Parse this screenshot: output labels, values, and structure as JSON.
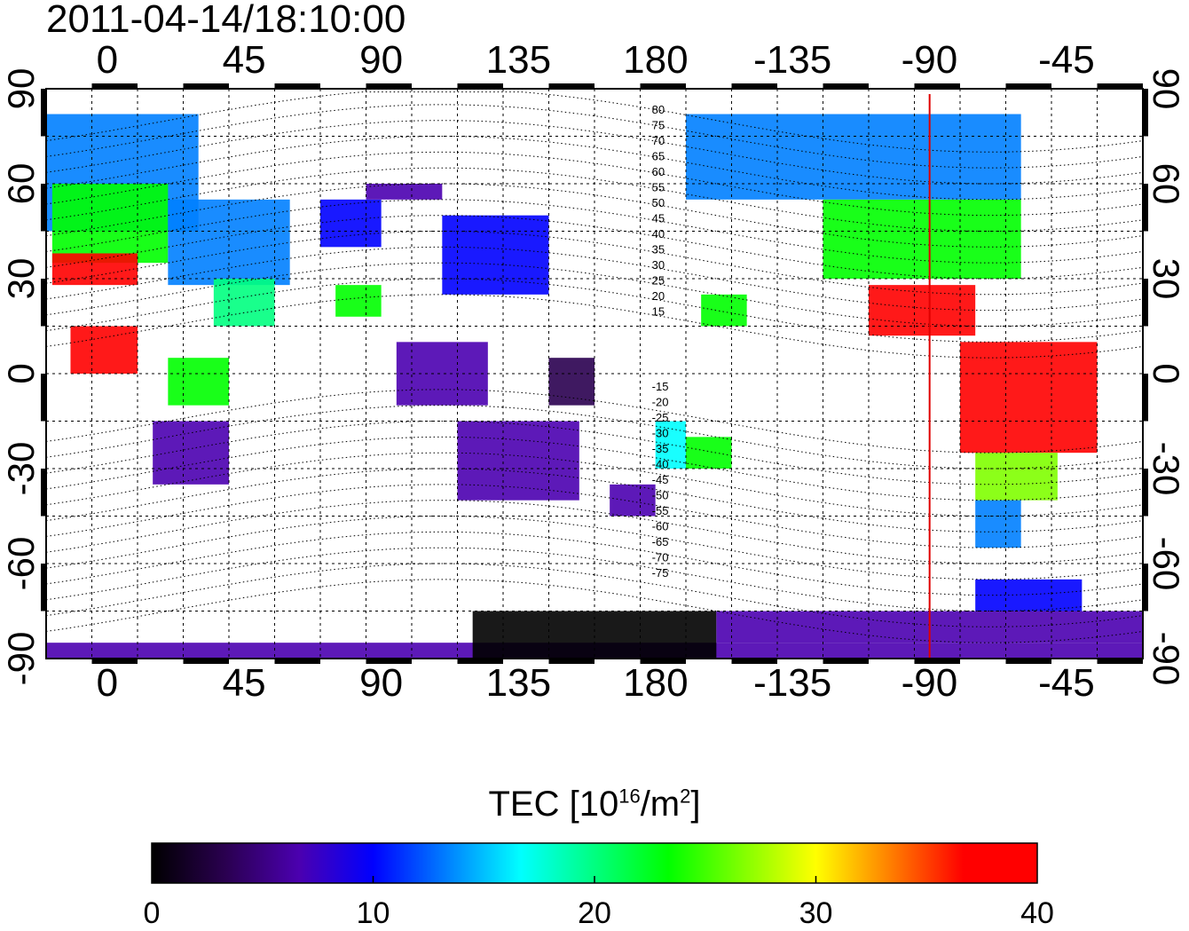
{
  "timestamp": "2011-04-14/18:10:00",
  "map": {
    "lon_start": -20,
    "lon_span": 360,
    "lat_min": -90,
    "lat_max": 90,
    "lon_ticks": [
      "0",
      "45",
      "90",
      "135",
      "180",
      "-135",
      "-90",
      "-45"
    ],
    "lat_ticks": [
      "90",
      "60",
      "30",
      "0",
      "-30",
      "-60",
      "-90"
    ],
    "terminator_lon": -90,
    "terminator_color": "#e00000"
  },
  "contour_labels_north": [
    "80",
    "75",
    "70",
    "65",
    "60",
    "55",
    "50",
    "45",
    "40",
    "35",
    "30",
    "25",
    "20",
    "15"
  ],
  "contour_labels_south": [
    "-15",
    "-20",
    "-25",
    "-30",
    "-35",
    "-40",
    "-45",
    "-50",
    "-55",
    "-60",
    "-65",
    "-70",
    "-75"
  ],
  "colorbar": {
    "title_prefix": "TEC  [10",
    "title_exp": "16",
    "title_mid": "/m",
    "title_exp2": "2",
    "title_suffix": "]",
    "ticks": [
      "0",
      "10",
      "20",
      "30",
      "40"
    ],
    "min": 0,
    "max": 40,
    "stops": [
      "#000000",
      "#2a0050",
      "#4b00b0",
      "#0000ff",
      "#0080ff",
      "#00ffff",
      "#00ff80",
      "#00ff00",
      "#80ff00",
      "#ffff00",
      "#ff8000",
      "#ff0000",
      "#ff0000"
    ]
  },
  "tec_patches": [
    {
      "lon": [
        -20,
        30
      ],
      "lat": [
        45,
        82
      ],
      "tec": 12
    },
    {
      "lon": [
        -18,
        20
      ],
      "lat": [
        35,
        60
      ],
      "tec": 22
    },
    {
      "lon": [
        -18,
        10
      ],
      "lat": [
        28,
        38
      ],
      "tec": 38
    },
    {
      "lon": [
        20,
        60
      ],
      "lat": [
        28,
        55
      ],
      "tec": 13
    },
    {
      "lon": [
        35,
        55
      ],
      "lat": [
        15,
        30
      ],
      "tec": 20
    },
    {
      "lon": [
        -12,
        10
      ],
      "lat": [
        0,
        15
      ],
      "tec": 39
    },
    {
      "lon": [
        20,
        40
      ],
      "lat": [
        -10,
        5
      ],
      "tec": 22
    },
    {
      "lon": [
        15,
        40
      ],
      "lat": [
        -35,
        -15
      ],
      "tec": 6
    },
    {
      "lon": [
        70,
        90
      ],
      "lat": [
        40,
        55
      ],
      "tec": 9
    },
    {
      "lon": [
        85,
        110
      ],
      "lat": [
        55,
        60
      ],
      "tec": 5
    },
    {
      "lon": [
        110,
        145
      ],
      "lat": [
        25,
        50
      ],
      "tec": 10
    },
    {
      "lon": [
        75,
        90
      ],
      "lat": [
        18,
        28
      ],
      "tec": 24
    },
    {
      "lon": [
        95,
        125
      ],
      "lat": [
        -10,
        10
      ],
      "tec": 5
    },
    {
      "lon": [
        115,
        155
      ],
      "lat": [
        -40,
        -15
      ],
      "tec": 5
    },
    {
      "lon": [
        145,
        160
      ],
      "lat": [
        -10,
        5
      ],
      "tec": 2
    },
    {
      "lon": [
        165,
        180
      ],
      "lat": [
        -45,
        -35
      ],
      "tec": 7
    },
    {
      "lon": [
        180,
        190
      ],
      "lat": [
        -30,
        -15
      ],
      "tec": 15
    },
    {
      "lon": [
        -170,
        -155
      ],
      "lat": [
        -30,
        -20
      ],
      "tec": 24
    },
    {
      "lon": [
        -165,
        -150
      ],
      "lat": [
        15,
        25
      ],
      "tec": 22
    },
    {
      "lon": [
        -125,
        -60
      ],
      "lat": [
        30,
        55
      ],
      "tec": 24
    },
    {
      "lon": [
        -170,
        -60
      ],
      "lat": [
        55,
        82
      ],
      "tec": 14
    },
    {
      "lon": [
        -110,
        -75
      ],
      "lat": [
        12,
        28
      ],
      "tec": 39
    },
    {
      "lon": [
        -80,
        -35
      ],
      "lat": [
        -25,
        10
      ],
      "tec": 39
    },
    {
      "lon": [
        -75,
        -48
      ],
      "lat": [
        -40,
        -25
      ],
      "tec": 26
    },
    {
      "lon": [
        -75,
        -60
      ],
      "lat": [
        -55,
        -40
      ],
      "tec": 14
    },
    {
      "lon": [
        -20,
        340
      ],
      "lat": [
        -90,
        -85
      ],
      "tec": 5
    },
    {
      "lon": [
        120,
        200
      ],
      "lat": [
        -90,
        -75
      ],
      "tec": 1
    },
    {
      "lon": [
        200,
        340
      ],
      "lat": [
        -85,
        -75
      ],
      "tec": 5
    },
    {
      "lon": [
        -75,
        -40
      ],
      "lat": [
        -75,
        -65
      ],
      "tec": 10
    }
  ]
}
